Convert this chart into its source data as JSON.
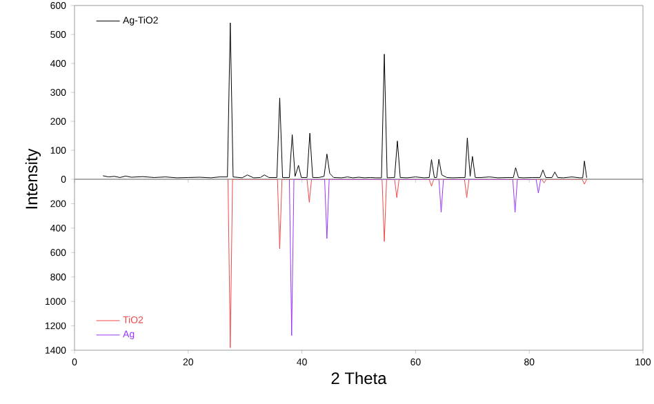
{
  "chart_data": [
    {
      "type": "line",
      "ylabel": "Intensity",
      "xlim": [
        0,
        100
      ],
      "ylim": [
        0,
        600
      ],
      "xticks": [
        0,
        20,
        40,
        60,
        80,
        100
      ],
      "yticks": [
        0,
        100,
        200,
        300,
        400,
        500,
        600
      ],
      "tick_labels": "y",
      "legend": "top left",
      "series": [
        {
          "name": "Ag-TiO2",
          "color": "#000000",
          "x": [
            5,
            6,
            7,
            8,
            9,
            10,
            12,
            14,
            16,
            18,
            20,
            22,
            24,
            25.5,
            26.9,
            27.4,
            27.9,
            29.5,
            30.4,
            31.5,
            32.7,
            33.4,
            34.2,
            35.6,
            36.1,
            36.6,
            37.8,
            38.3,
            38.8,
            39.4,
            39.9,
            40.9,
            41.4,
            41.9,
            43.0,
            43.9,
            44.4,
            44.9,
            45.6,
            47,
            48,
            49,
            50,
            51,
            52,
            53,
            54.0,
            54.5,
            55.0,
            56.3,
            56.8,
            57.3,
            58.5,
            60,
            61.5,
            62.4,
            62.8,
            63.3,
            63.7,
            64.1,
            64.6,
            65.5,
            66.5,
            68.1,
            68.7,
            69.1,
            69.6,
            70.0,
            70.5,
            71.5,
            73,
            74.5,
            76.2,
            77.2,
            77.6,
            78.1,
            79,
            80.5,
            81.9,
            82.4,
            82.9,
            84.0,
            84.5,
            85.0,
            86,
            87.5,
            88.9,
            89.4,
            89.7,
            90.1
          ],
          "values": [
            12,
            8,
            10,
            6,
            11,
            7,
            9,
            6,
            8,
            5,
            6,
            7,
            5,
            8,
            8,
            540,
            8,
            5,
            15,
            5,
            6,
            15,
            6,
            6,
            281,
            6,
            6,
            154,
            10,
            48,
            6,
            6,
            159,
            6,
            6,
            10,
            87,
            20,
            6,
            5,
            8,
            5,
            7,
            5,
            6,
            5,
            5,
            432,
            5,
            6,
            132,
            6,
            5,
            8,
            5,
            6,
            68,
            6,
            6,
            69,
            15,
            6,
            5,
            6,
            6,
            143,
            10,
            79,
            6,
            6,
            8,
            5,
            6,
            6,
            40,
            6,
            5,
            6,
            6,
            32,
            6,
            6,
            25,
            6,
            5,
            8,
            5,
            5,
            63,
            5
          ]
        }
      ]
    },
    {
      "type": "line",
      "xlabel": "2 Theta",
      "xlim": [
        0,
        100
      ],
      "ylim": [
        1400,
        0
      ],
      "xticks": [
        0,
        20,
        40,
        60,
        80,
        100
      ],
      "yticks": [
        200,
        400,
        600,
        800,
        1000,
        1200,
        1400
      ],
      "legend": "bottom left",
      "series": [
        {
          "name": "TiO2",
          "color": "#f04848",
          "x": [
            27.0,
            27.4,
            27.8,
            35.7,
            36.1,
            36.5,
            40.9,
            41.3,
            41.7,
            54.1,
            54.5,
            54.9,
            56.3,
            56.7,
            57.1,
            62.4,
            62.8,
            63.2,
            68.6,
            69.0,
            69.4,
            82.2,
            82.6,
            83.0,
            89.3,
            89.7,
            90.1
          ],
          "values": [
            0,
            1380,
            0,
            0,
            570,
            0,
            0,
            189,
            0,
            0,
            510,
            0,
            0,
            150,
            0,
            0,
            57,
            0,
            0,
            150,
            0,
            0,
            30,
            0,
            0,
            40,
            0
          ]
        },
        {
          "name": "Ag",
          "color": "#9933ff",
          "x": [
            37.8,
            38.2,
            38.6,
            44.0,
            44.4,
            44.8,
            64.1,
            64.5,
            64.9,
            77.1,
            77.5,
            77.9,
            81.2,
            81.6,
            82.0
          ],
          "values": [
            0,
            1280,
            0,
            0,
            485,
            0,
            0,
            270,
            0,
            0,
            270,
            0,
            0,
            113,
            0
          ]
        }
      ]
    }
  ]
}
